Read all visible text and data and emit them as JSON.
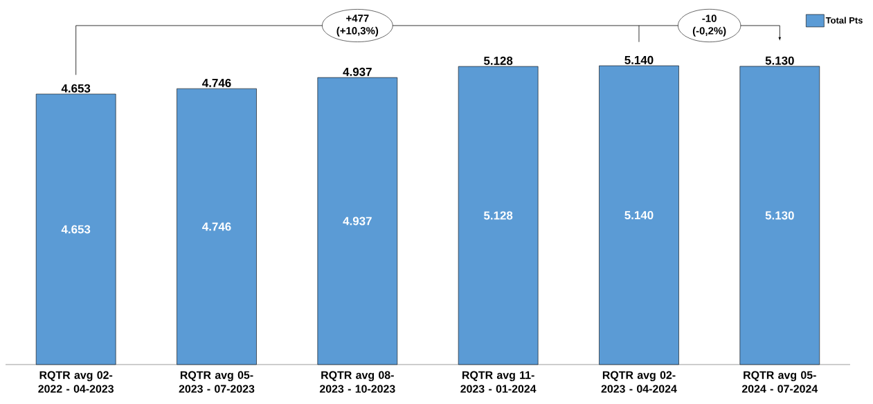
{
  "chart_data": {
    "type": "bar",
    "categories": [
      "RQTR avg 02-2022 - 04-2023",
      "RQTR avg 05-2023 - 07-2023",
      "RQTR avg 08-2023 - 10-2023",
      "RQTR avg 11-2023 - 01-2024",
      "RQTR avg 02-2023 - 04-2024",
      "RQTR avg 05-2024 - 07-2024"
    ],
    "series": [
      {
        "name": "Total Pts",
        "color": "#5b9bd5",
        "values": [
          4653,
          4746,
          4937,
          5128,
          5140,
          5130
        ],
        "value_labels": [
          "4.653",
          "4.746",
          "4.937",
          "5.128",
          "5.140",
          "5.130"
        ]
      }
    ],
    "annotations": [
      "+477 (+10,3%)",
      "-10 (-0,2%)"
    ],
    "legend": "top right"
  }
}
